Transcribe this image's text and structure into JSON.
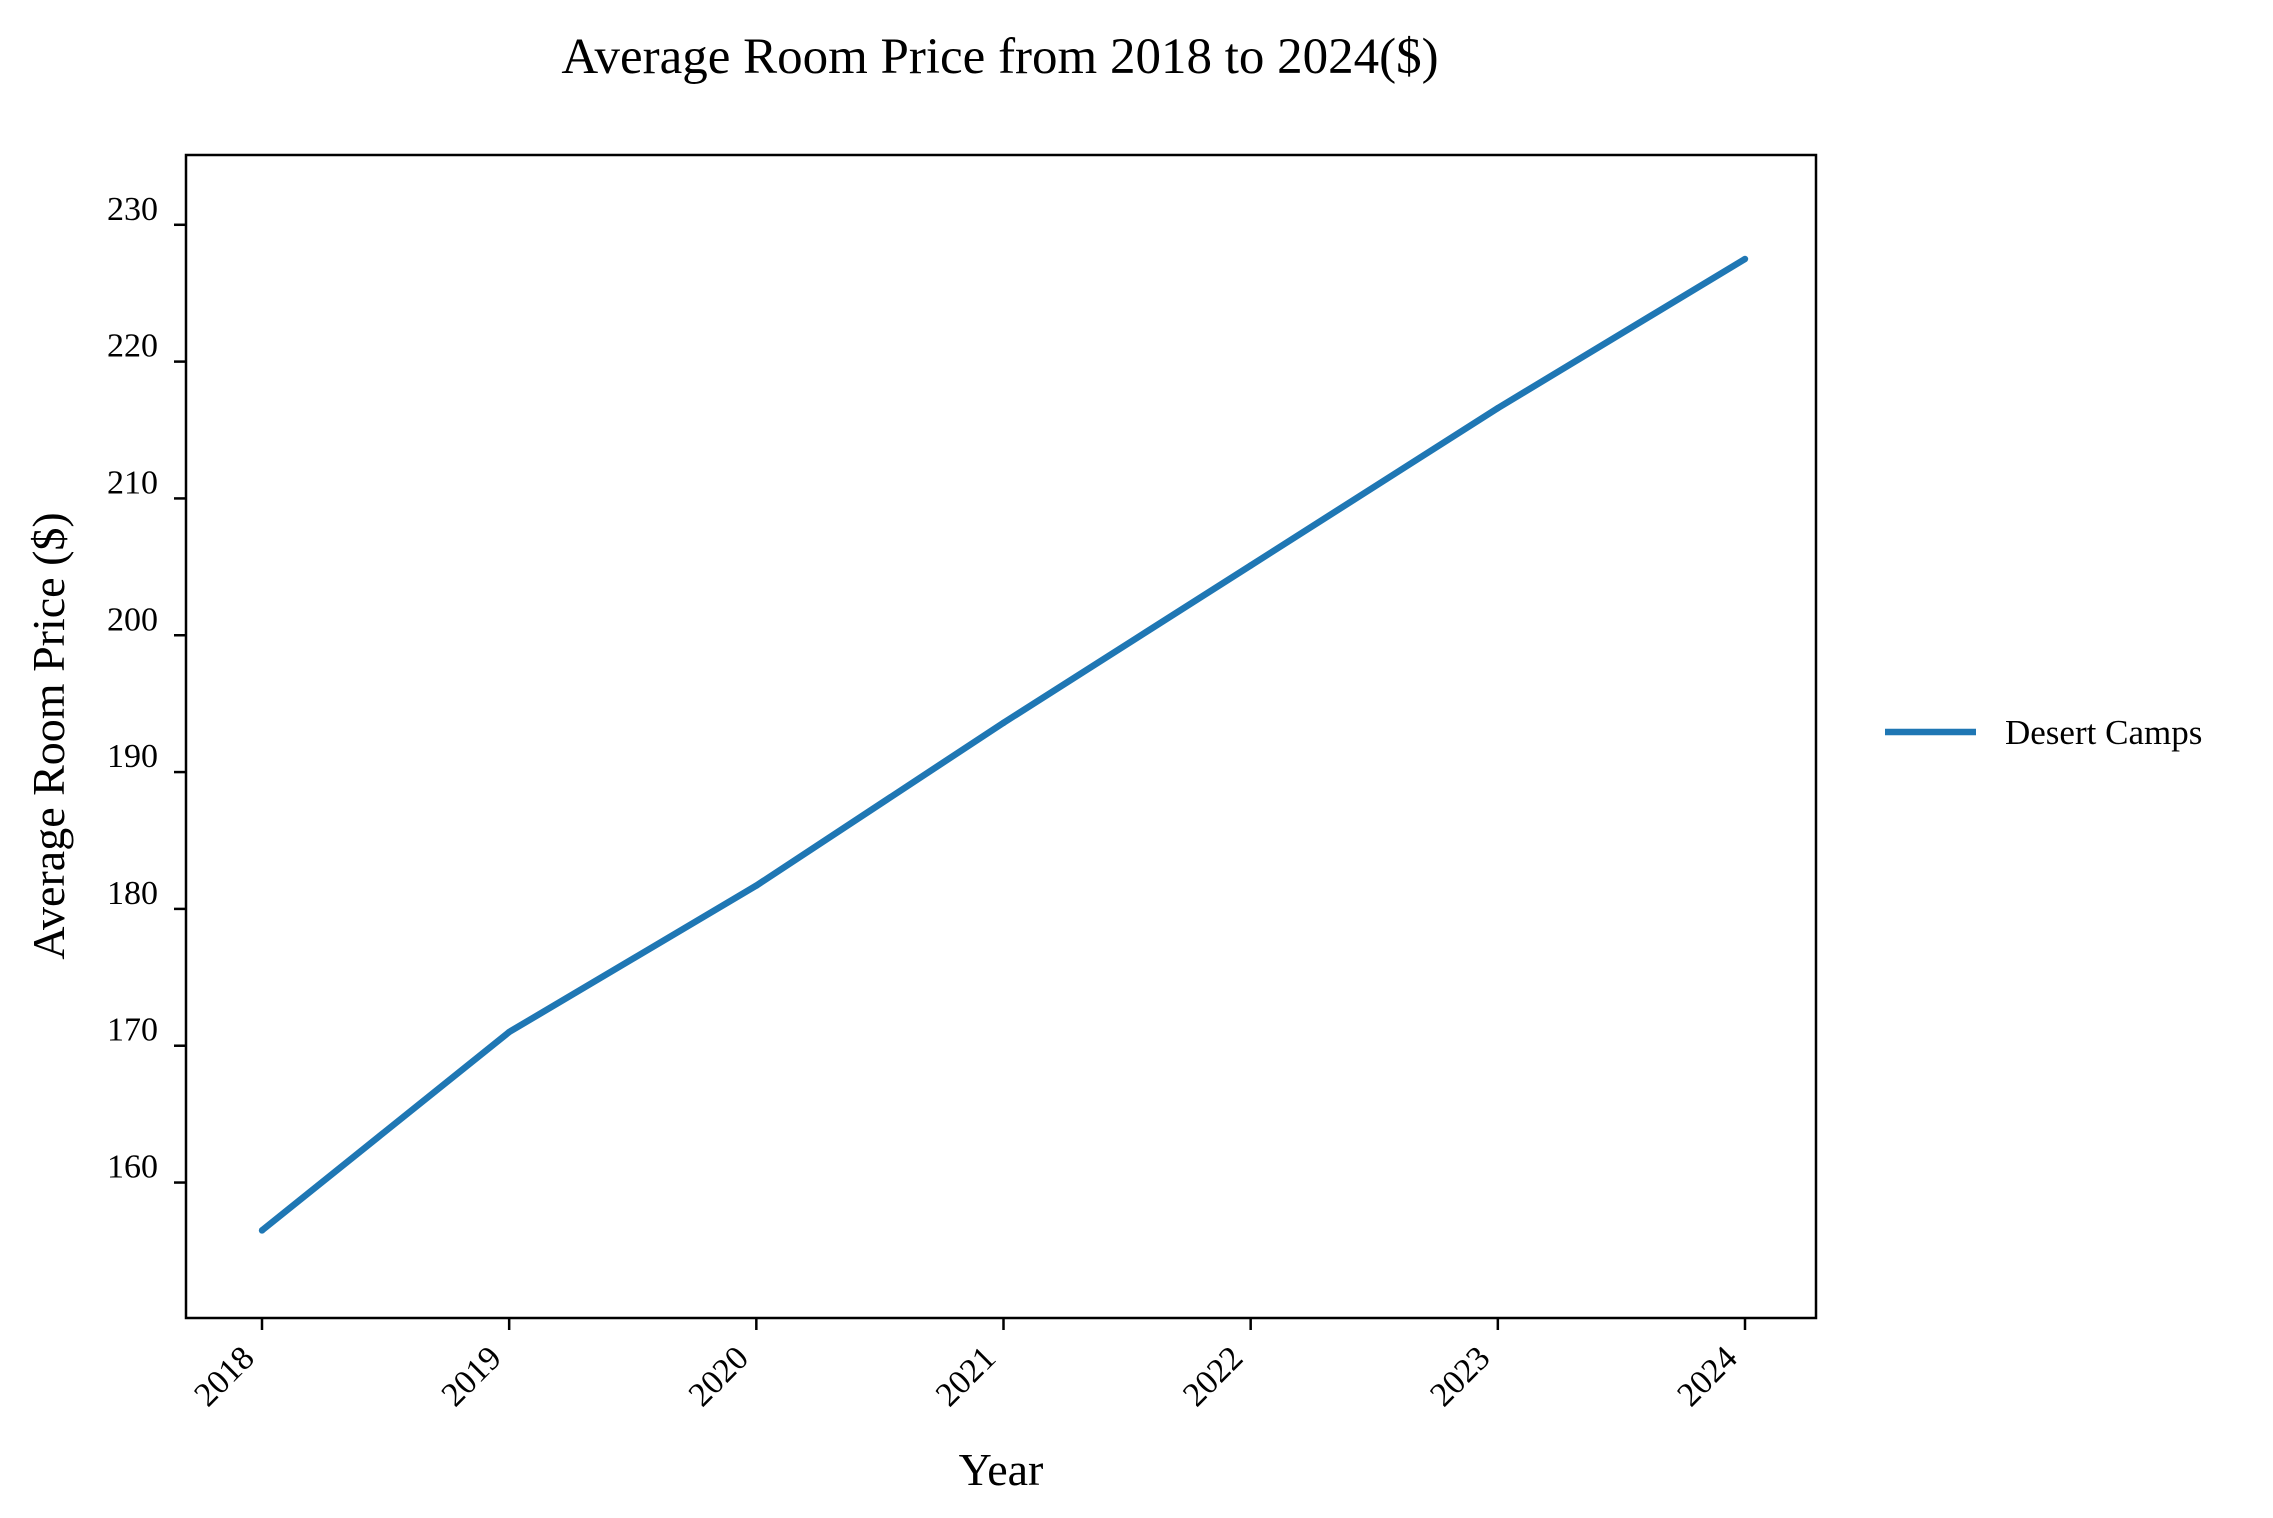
{
  "chart_data": {
    "type": "line",
    "title": "Average Room Price from 2018 to 2024($)",
    "xlabel": "Year",
    "ylabel": "Average Room Price ($)",
    "categories": [
      "2018",
      "2019",
      "2020",
      "2021",
      "2022",
      "2023",
      "2024"
    ],
    "series": [
      {
        "name": "Desert Camps",
        "values": [
          156.5,
          171.0,
          181.7,
          193.6,
          205.1,
          216.6,
          227.5
        ],
        "color": "#1f77b4"
      }
    ],
    "yticks": [
      160,
      170,
      180,
      190,
      200,
      210,
      220,
      230
    ],
    "ylim": [
      150.1,
      235.1
    ],
    "grid": false,
    "legend_position": "right"
  }
}
